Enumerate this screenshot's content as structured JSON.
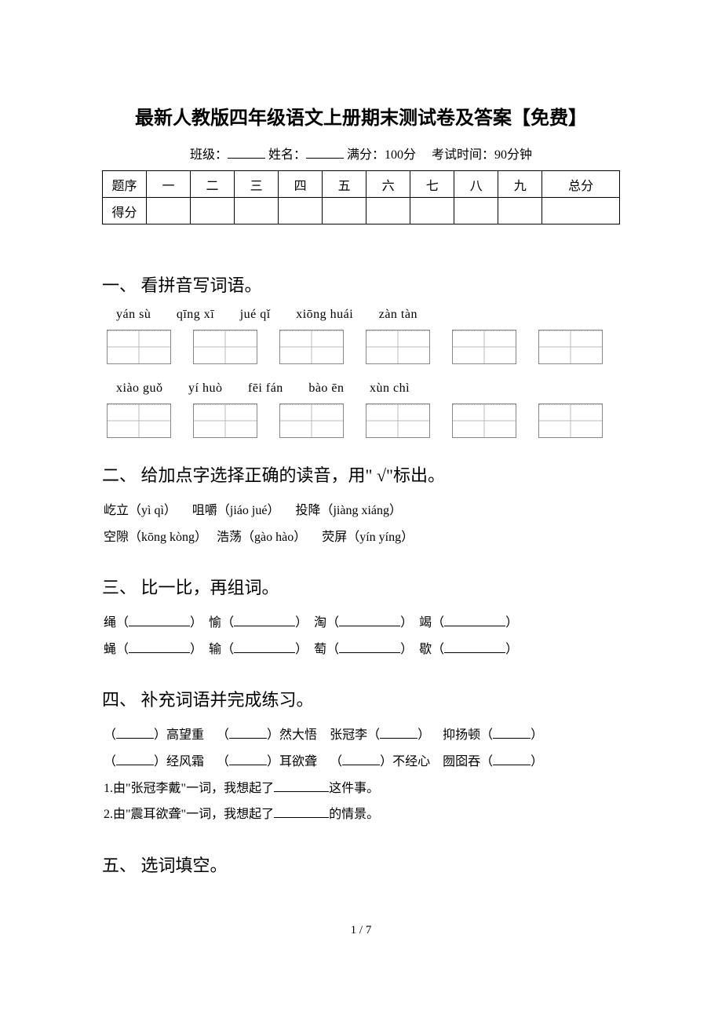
{
  "title": "最新人教版四年级语文上册期末测试卷及答案【免费】",
  "info": {
    "class_label": "班级：",
    "name_label": "姓名：",
    "full_score_label": "满分：",
    "full_score_value": "100分",
    "duration_label": "考试时间：",
    "duration_value": "90分钟"
  },
  "score_table": {
    "header_label": "题序",
    "score_label": "得分",
    "columns": [
      "一",
      "二",
      "三",
      "四",
      "五",
      "六",
      "七",
      "八",
      "九",
      "总分"
    ]
  },
  "sections": {
    "s1": {
      "heading": "一、 看拼音写词语。",
      "row1": [
        "yán sù",
        "qīng xī",
        "jué qǐ",
        "xiōng huái",
        "zàn tàn"
      ],
      "row2": [
        "xiào guǒ",
        "yí huò",
        "fēi fán",
        "bào ēn",
        "xùn chì"
      ]
    },
    "s2": {
      "heading": "二、 给加点字选择正确的读音，用\" √\"标出。",
      "items": [
        "屹立（yì qì）",
        "咀嚼（jiáo  jué）",
        "投降（jiàng xiáng）",
        "空隙（kōng kòng）",
        "浩荡（gào hào）",
        "荧屏（yín yíng）"
      ]
    },
    "s3": {
      "heading": "三、 比一比，再组词。",
      "pairs": [
        [
          "绳",
          "愉",
          "淘",
          "竭"
        ],
        [
          "蝇",
          "输",
          "萄",
          "歇"
        ]
      ]
    },
    "s4": {
      "heading": "四、 补充词语并完成练习。",
      "row1": [
        {
          "pre": "（",
          "mid": "）高望重"
        },
        {
          "pre": "（",
          "mid": "）然大悟"
        },
        {
          "pre": "张冠李（",
          "mid": "）"
        },
        {
          "pre": "抑扬顿（",
          "mid": "）"
        }
      ],
      "row2": [
        {
          "pre": "（",
          "mid": "）经风霜"
        },
        {
          "pre": "（",
          "mid": "）耳欲聋"
        },
        {
          "pre": "（",
          "mid": "）不经心"
        },
        {
          "pre": "囫囵吞（",
          "mid": "）"
        }
      ],
      "q1_a": "1.由\"张冠李戴\"一词，我想起了",
      "q1_b": "这件事。",
      "q2_a": "2.由\"震耳欲聋\"一词，我想起了",
      "q2_b": "的情景。"
    },
    "s5": {
      "heading": "五、 选词填空。"
    }
  },
  "page_number": "1 / 7",
  "colors": {
    "text": "#000000",
    "background": "#ffffff",
    "box_border": "#888888",
    "box_guide": "#bbbbbb"
  }
}
